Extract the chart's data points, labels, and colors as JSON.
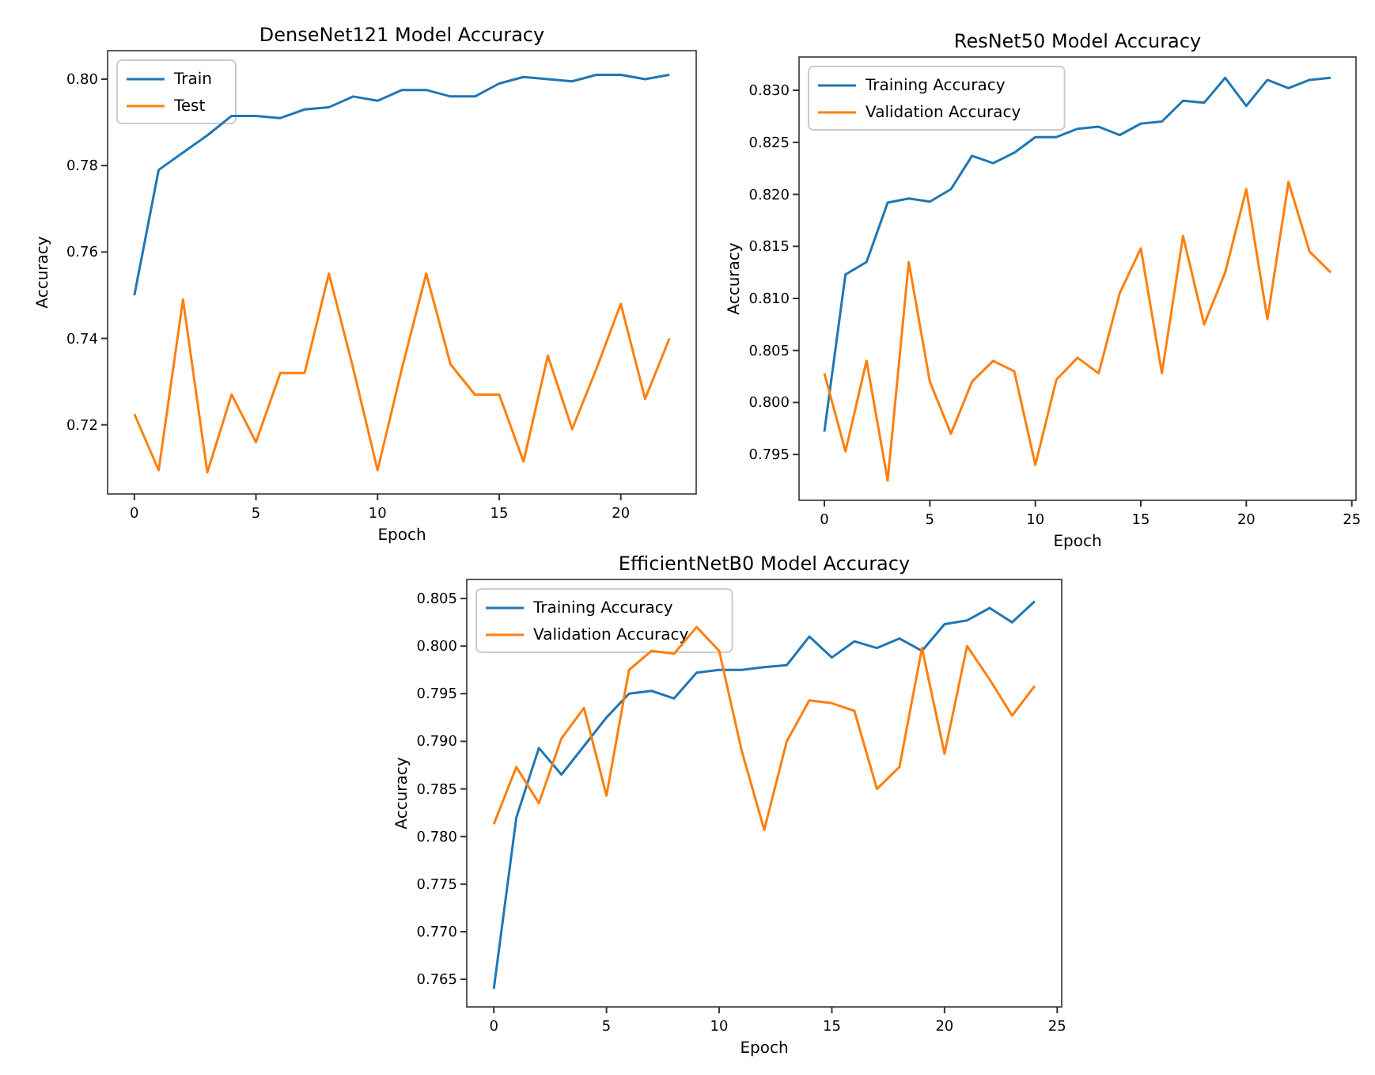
{
  "chart_data": [
    {
      "type": "line",
      "title": "DenseNet121 Model Accuracy",
      "xlabel": "Epoch",
      "ylabel": "Accuracy",
      "x": [
        0,
        1,
        2,
        3,
        4,
        5,
        6,
        7,
        8,
        9,
        10,
        11,
        12,
        13,
        14,
        15,
        16,
        17,
        18,
        19,
        20,
        21,
        22
      ],
      "xlim": [
        -1.1,
        23.1
      ],
      "ylim": [
        0.704,
        0.8066
      ],
      "xticks": [
        0,
        5,
        10,
        15,
        20
      ],
      "yticks": [
        {
          "value": 0.72,
          "label": "0.72"
        },
        {
          "value": 0.74,
          "label": "0.74"
        },
        {
          "value": 0.76,
          "label": "0.76"
        },
        {
          "value": 0.78,
          "label": "0.78"
        },
        {
          "value": 0.8,
          "label": "0.80"
        }
      ],
      "grid": false,
      "legend": "top left",
      "marker": "none",
      "line_style": "solid",
      "series": [
        {
          "name": "Train",
          "color": "#1f77b4",
          "values": [
            0.75,
            0.779,
            0.783,
            0.787,
            0.7915,
            0.7915,
            0.791,
            0.793,
            0.7935,
            0.796,
            0.795,
            0.7975,
            0.7975,
            0.796,
            0.796,
            0.799,
            0.8005,
            0.8,
            0.7995,
            0.801,
            0.801,
            0.8,
            0.801
          ]
        },
        {
          "name": "Test",
          "color": "#ff7f0e",
          "values": [
            0.7225,
            0.7095,
            0.749,
            0.709,
            0.727,
            0.716,
            0.732,
            0.732,
            0.755,
            0.733,
            0.7095,
            0.733,
            0.755,
            0.734,
            0.727,
            0.727,
            0.7115,
            0.736,
            0.719,
            0.733,
            0.748,
            0.726,
            0.74
          ]
        }
      ]
    },
    {
      "type": "line",
      "title": "ResNet50 Model Accuracy",
      "xlabel": "Epoch",
      "ylabel": "Accuracy",
      "x": [
        0,
        1,
        2,
        3,
        4,
        5,
        6,
        7,
        8,
        9,
        10,
        11,
        12,
        13,
        14,
        15,
        16,
        17,
        18,
        19,
        20,
        21,
        22,
        23,
        24
      ],
      "xlim": [
        -1.2,
        25.2
      ],
      "ylim": [
        0.7906,
        0.8332
      ],
      "xticks": [
        0,
        5,
        10,
        15,
        20,
        25
      ],
      "yticks": [
        {
          "value": 0.795,
          "label": "0.795"
        },
        {
          "value": 0.8,
          "label": "0.800"
        },
        {
          "value": 0.805,
          "label": "0.805"
        },
        {
          "value": 0.81,
          "label": "0.810"
        },
        {
          "value": 0.815,
          "label": "0.815"
        },
        {
          "value": 0.82,
          "label": "0.820"
        },
        {
          "value": 0.825,
          "label": "0.825"
        },
        {
          "value": 0.83,
          "label": "0.830"
        }
      ],
      "grid": false,
      "legend": "top left",
      "marker": "none",
      "line_style": "solid",
      "series": [
        {
          "name": "Training Accuracy",
          "color": "#1f77b4",
          "values": [
            0.7972,
            0.8123,
            0.8135,
            0.8192,
            0.8196,
            0.8193,
            0.8205,
            0.8237,
            0.823,
            0.824,
            0.8255,
            0.8255,
            0.8263,
            0.8265,
            0.8257,
            0.8268,
            0.827,
            0.829,
            0.8288,
            0.8312,
            0.8285,
            0.831,
            0.8302,
            0.831,
            0.8312
          ]
        },
        {
          "name": "Validation Accuracy",
          "color": "#ff7f0e",
          "values": [
            0.8028,
            0.7953,
            0.804,
            0.7925,
            0.8135,
            0.802,
            0.797,
            0.802,
            0.804,
            0.803,
            0.794,
            0.8022,
            0.8043,
            0.8028,
            0.8105,
            0.8148,
            0.8028,
            0.816,
            0.8075,
            0.8125,
            0.8205,
            0.808,
            0.8212,
            0.8145,
            0.8125
          ]
        }
      ]
    },
    {
      "type": "line",
      "title": "EfficientNetB0 Model Accuracy",
      "xlabel": "Epoch",
      "ylabel": "Accuracy",
      "x": [
        0,
        1,
        2,
        3,
        4,
        5,
        6,
        7,
        8,
        9,
        10,
        11,
        12,
        13,
        14,
        15,
        16,
        17,
        18,
        19,
        20,
        21,
        22,
        23,
        24
      ],
      "xlim": [
        -1.2,
        25.2
      ],
      "ylim": [
        0.7621,
        0.807
      ],
      "xticks": [
        0,
        5,
        10,
        15,
        20,
        25
      ],
      "yticks": [
        {
          "value": 0.765,
          "label": "0.765"
        },
        {
          "value": 0.77,
          "label": "0.770"
        },
        {
          "value": 0.775,
          "label": "0.775"
        },
        {
          "value": 0.78,
          "label": "0.780"
        },
        {
          "value": 0.785,
          "label": "0.785"
        },
        {
          "value": 0.79,
          "label": "0.790"
        },
        {
          "value": 0.795,
          "label": "0.795"
        },
        {
          "value": 0.8,
          "label": "0.800"
        },
        {
          "value": 0.805,
          "label": "0.805"
        }
      ],
      "grid": false,
      "legend": "top left",
      "marker": "none",
      "line_style": "solid",
      "series": [
        {
          "name": "Training Accuracy",
          "color": "#1f77b4",
          "values": [
            0.764,
            0.782,
            0.7893,
            0.7865,
            0.7895,
            0.7925,
            0.795,
            0.7953,
            0.7945,
            0.7972,
            0.7975,
            0.7975,
            0.7978,
            0.798,
            0.801,
            0.7988,
            0.8005,
            0.7998,
            0.8008,
            0.7995,
            0.8023,
            0.8027,
            0.804,
            0.8025,
            0.8047
          ]
        },
        {
          "name": "Validation Accuracy",
          "color": "#ff7f0e",
          "values": [
            0.7813,
            0.7873,
            0.7835,
            0.7903,
            0.7935,
            0.7843,
            0.7975,
            0.7995,
            0.7992,
            0.802,
            0.7995,
            0.789,
            0.7807,
            0.79,
            0.7943,
            0.794,
            0.7932,
            0.785,
            0.7873,
            0.7998,
            0.7887,
            0.8,
            0.7965,
            0.7927,
            0.7958
          ]
        }
      ]
    }
  ]
}
